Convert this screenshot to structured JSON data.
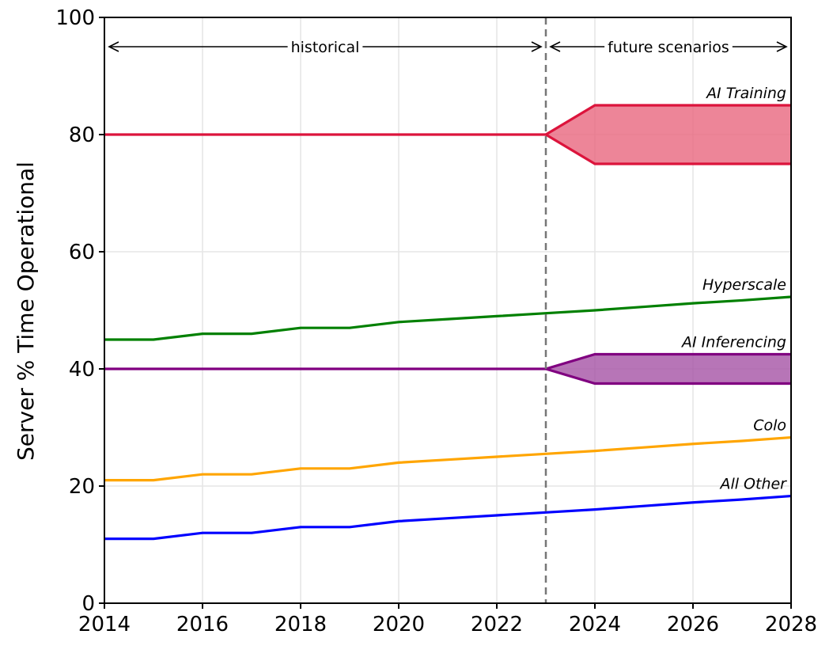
{
  "chart_data": {
    "type": "line",
    "ylabel": "Server % Time Operational",
    "xlabel": "",
    "xlim": [
      2014,
      2028
    ],
    "ylim": [
      0,
      100
    ],
    "xticks": [
      "2014",
      "2016",
      "2018",
      "2020",
      "2022",
      "2024",
      "2026",
      "2028"
    ],
    "yticks": [
      "0",
      "20",
      "40",
      "60",
      "80",
      "100"
    ],
    "grid": true,
    "divider_x": 2023,
    "regions": [
      {
        "label": "historical",
        "from": 2014,
        "to": 2023
      },
      {
        "label": "future scenarios",
        "from": 2023,
        "to": 2028
      }
    ],
    "series": [
      {
        "name": "AI Training",
        "color": "#dc143c",
        "fill": "#e8667e",
        "x": [
          2014,
          2015,
          2016,
          2017,
          2018,
          2019,
          2020,
          2021,
          2022,
          2023
        ],
        "y": [
          80,
          80,
          80,
          80,
          80,
          80,
          80,
          80,
          80,
          80
        ],
        "band": {
          "x": [
            2023,
            2024,
            2028
          ],
          "low": [
            80,
            75,
            75
          ],
          "high": [
            80,
            85,
            85
          ]
        }
      },
      {
        "name": "Hyperscale",
        "color": "#008000",
        "x": [
          2014,
          2015,
          2016,
          2017,
          2018,
          2019,
          2020,
          2021,
          2022,
          2023,
          2024,
          2025,
          2026,
          2027,
          2028
        ],
        "y": [
          45,
          45,
          46,
          46,
          47,
          47,
          48,
          48.5,
          49,
          49.5,
          50,
          50.6,
          51.2,
          51.7,
          52.3
        ]
      },
      {
        "name": "AI Inferencing",
        "color": "#800080",
        "fill": "#a552a5",
        "x": [
          2014,
          2015,
          2016,
          2017,
          2018,
          2019,
          2020,
          2021,
          2022,
          2023
        ],
        "y": [
          40,
          40,
          40,
          40,
          40,
          40,
          40,
          40,
          40,
          40
        ],
        "band": {
          "x": [
            2023,
            2024,
            2028
          ],
          "low": [
            40,
            37.5,
            37.5
          ],
          "high": [
            40,
            42.5,
            42.5
          ]
        }
      },
      {
        "name": "Colo",
        "color": "#ffa500",
        "x": [
          2014,
          2015,
          2016,
          2017,
          2018,
          2019,
          2020,
          2021,
          2022,
          2023,
          2024,
          2025,
          2026,
          2027,
          2028
        ],
        "y": [
          21,
          21,
          22,
          22,
          23,
          23,
          24,
          24.5,
          25,
          25.5,
          26,
          26.6,
          27.2,
          27.7,
          28.3
        ]
      },
      {
        "name": "All Other",
        "color": "#0000ff",
        "x": [
          2014,
          2015,
          2016,
          2017,
          2018,
          2019,
          2020,
          2021,
          2022,
          2023,
          2024,
          2025,
          2026,
          2027,
          2028
        ],
        "y": [
          11,
          11,
          12,
          12,
          13,
          13,
          14,
          14.5,
          15,
          15.5,
          16,
          16.6,
          17.2,
          17.7,
          18.3
        ]
      }
    ]
  }
}
